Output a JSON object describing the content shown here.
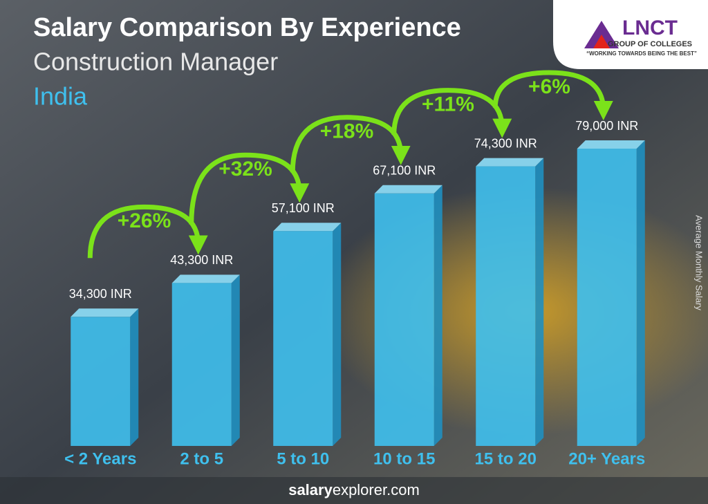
{
  "chart_data": {
    "type": "bar",
    "title": "Salary Comparison By Experience",
    "subtitle": "Construction Manager",
    "location": "India",
    "y_label": "Average Monthly Salary",
    "categories": [
      "< 2 Years",
      "2 to 5",
      "5 to 10",
      "10 to 15",
      "15 to 20",
      "20+ Years"
    ],
    "values": [
      34300,
      43300,
      57100,
      67100,
      74300,
      79000
    ],
    "value_labels": [
      "34,300 INR",
      "43,300 INR",
      "57,100 INR",
      "67,100 INR",
      "74,300 INR",
      "79,000 INR"
    ],
    "annotations": [
      "+26%",
      "+32%",
      "+18%",
      "+11%",
      "+6%"
    ],
    "color": "#3fc0ee",
    "footer": {
      "bold": "salary",
      "regular": "explorer.com"
    }
  },
  "logo": {
    "name": "LNCT",
    "line1": "GROUP OF COLLEGES",
    "line2": "“WORKING TOWARDS BEING THE BEST”"
  }
}
